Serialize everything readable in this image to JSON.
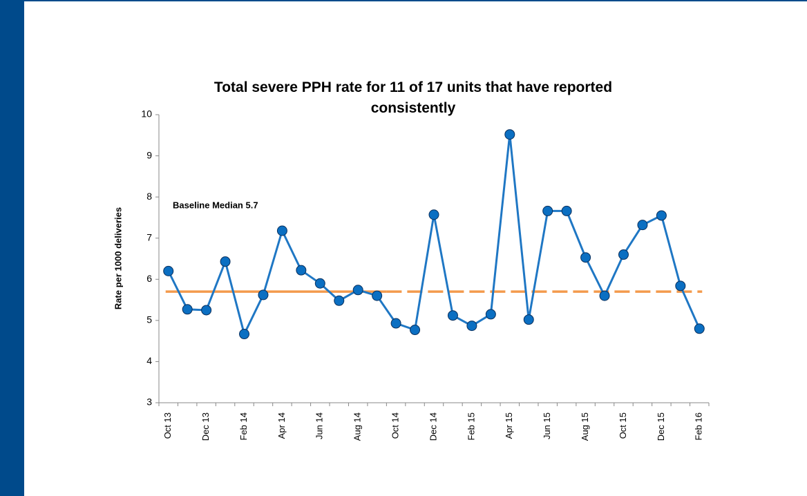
{
  "chart_data": {
    "type": "line",
    "title": "Total severe PPH rate for 11 of 17 units that have reported consistently",
    "y_label": "Rate per 1000 deliveries",
    "categories": [
      "Oct 13",
      null,
      "Dec 13",
      null,
      "Feb 14",
      null,
      "Apr 14",
      null,
      "Jun 14",
      null,
      "Aug 14",
      null,
      "Oct 14",
      null,
      "Dec 14",
      null,
      "Feb 15",
      null,
      "Apr 15",
      null,
      "Jun 15",
      null,
      "Aug 15",
      null,
      "Oct 15",
      null,
      "Dec 15",
      null,
      "Feb 16"
    ],
    "series": [
      {
        "name": "Rate",
        "color": "#1f77c4",
        "marker_color": "#0b6fc2",
        "values": [
          6.2,
          5.27,
          5.25,
          6.43,
          4.67,
          5.62,
          7.18,
          6.22,
          5.9,
          5.48,
          5.74,
          5.6,
          4.93,
          4.77,
          7.57,
          5.12,
          4.87,
          5.15,
          9.52,
          5.02,
          7.66,
          7.66,
          6.53,
          5.6,
          6.6,
          7.32,
          7.55,
          5.84,
          4.8
        ]
      }
    ],
    "median": {
      "value": 5.7,
      "label": "Baseline Median 5.7",
      "color": "#f39a4c",
      "baseline_points": 12
    },
    "ylim": [
      3,
      10
    ],
    "yticks": [
      3,
      4,
      5,
      6,
      7,
      8,
      9,
      10
    ]
  }
}
